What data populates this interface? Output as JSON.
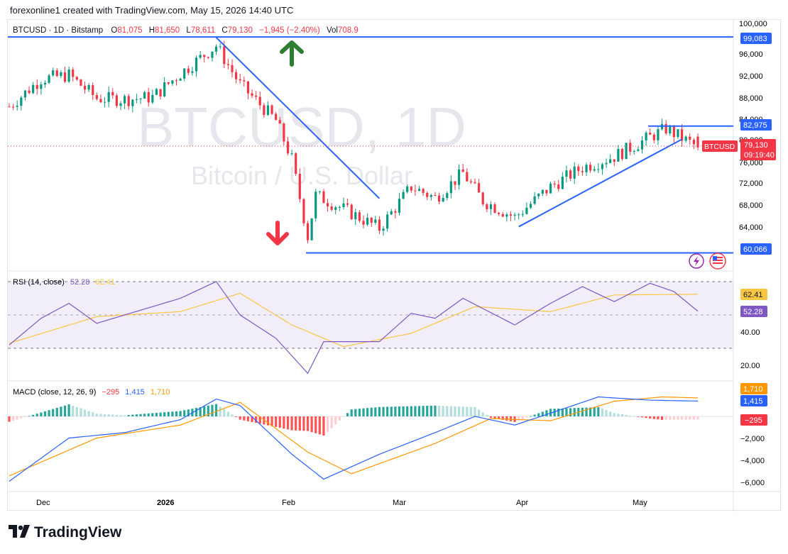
{
  "header": {
    "caption": "forexonline1 created with TradingView.com, May 15, 2026 14:40 UTC"
  },
  "legend": {
    "symbol": "BTCUSD · 1D · Bitstamp",
    "o_label": "O",
    "o": "81,075",
    "h_label": "H",
    "h": "81,650",
    "l_label": "L",
    "l": "78,611",
    "c_label": "C",
    "c": "79,130",
    "change": "−1,945 (−2.40%)",
    "vol_label": "Vol",
    "vol": "708.9"
  },
  "watermark": {
    "line1": "BTCUSD, 1D",
    "line2": "Bitcoin / U.S. Dollar"
  },
  "price_axis": {
    "ticks": [
      "100,000",
      "96,000",
      "92,000",
      "88,000",
      "84,000",
      "80,000",
      "76,000",
      "72,000",
      "68,000",
      "64,000"
    ]
  },
  "price_labels": {
    "resistance_top": "99,083",
    "range_top": "82,975",
    "symbol_tag": "BTCUSD",
    "last": "79,130",
    "countdown": "09:19:40",
    "support": "60,066"
  },
  "rsi": {
    "label": "RSI (14, close)",
    "value": "52.28",
    "ma": "62.41",
    "ticks": [
      "40.00",
      "20.00"
    ]
  },
  "macd": {
    "label": "MACD (close, 12, 26, 9)",
    "hist": "−295",
    "macd": "1,415",
    "signal": "1,710",
    "ticks": [
      "−2,000",
      "−4,000",
      "−6,000"
    ]
  },
  "time_axis": {
    "labels": [
      "Dec",
      "2026",
      "Feb",
      "Mar",
      "Apr",
      "May"
    ]
  },
  "colors": {
    "up": "#089981",
    "down": "#f23645",
    "line": "#2962ff",
    "rsi": "#7e57c2",
    "signal": "#ff9800"
  },
  "brand": {
    "name": "TradingView"
  },
  "chart_data": {
    "type": "candlestick",
    "symbol": "BTCUSD",
    "timeframe": "1D",
    "x_start": "2025-11-23",
    "x_end": "2026-05-15",
    "ylim": [
      60000,
      100000
    ],
    "last": {
      "open": 81075,
      "high": 81650,
      "low": 78611,
      "close": 79130
    },
    "price_path": [
      {
        "date": "2025-11-23",
        "close": 86500
      },
      {
        "date": "2025-12-01",
        "close": 91500
      },
      {
        "date": "2025-12-08",
        "close": 92200
      },
      {
        "date": "2025-12-15",
        "close": 88000
      },
      {
        "date": "2025-12-22",
        "close": 87800
      },
      {
        "date": "2025-12-29",
        "close": 88200
      },
      {
        "date": "2026-01-05",
        "close": 92500
      },
      {
        "date": "2026-01-14",
        "close": 97500
      },
      {
        "date": "2026-01-20",
        "close": 90500
      },
      {
        "date": "2026-01-29",
        "close": 84000
      },
      {
        "date": "2026-02-02",
        "close": 77000
      },
      {
        "date": "2026-02-06",
        "close": 63000
      },
      {
        "date": "2026-02-08",
        "close": 70500
      },
      {
        "date": "2026-02-15",
        "close": 68000
      },
      {
        "date": "2026-02-24",
        "close": 64500
      },
      {
        "date": "2026-03-04",
        "close": 72000
      },
      {
        "date": "2026-03-10",
        "close": 70000
      },
      {
        "date": "2026-03-17",
        "close": 74500
      },
      {
        "date": "2026-03-22",
        "close": 69500
      },
      {
        "date": "2026-03-30",
        "close": 66500
      },
      {
        "date": "2026-04-08",
        "close": 72000
      },
      {
        "date": "2026-04-16",
        "close": 75500
      },
      {
        "date": "2026-04-24",
        "close": 77500
      },
      {
        "date": "2026-05-03",
        "close": 81000
      },
      {
        "date": "2026-05-07",
        "close": 82500
      },
      {
        "date": "2026-05-15",
        "close": 79130
      }
    ],
    "horizontal_levels": [
      {
        "price": 99083,
        "label": "99,083"
      },
      {
        "price": 82975,
        "label": "82,975"
      },
      {
        "price": 60066,
        "label": "60,066"
      }
    ],
    "trend_lines": [
      {
        "from": {
          "date": "2026-01-14",
          "price": 99000
        },
        "to": {
          "date": "2026-02-24",
          "price": 69900
        }
      },
      {
        "from": {
          "date": "2026-03-31",
          "price": 64800
        },
        "to": {
          "date": "2026-05-11",
          "price": 80600
        }
      }
    ],
    "rsi": {
      "period": 14,
      "ylim": [
        10,
        75
      ],
      "bands": [
        30,
        70
      ],
      "path": [
        {
          "date": "2025-11-23",
          "value": 32
        },
        {
          "date": "2025-12-01",
          "value": 48
        },
        {
          "date": "2025-12-08",
          "value": 57
        },
        {
          "date": "2025-12-15",
          "value": 45
        },
        {
          "date": "2025-12-22",
          "value": 50
        },
        {
          "date": "2026-01-05",
          "value": 60
        },
        {
          "date": "2026-01-14",
          "value": 70
        },
        {
          "date": "2026-01-20",
          "value": 50
        },
        {
          "date": "2026-01-29",
          "value": 36
        },
        {
          "date": "2026-02-06",
          "value": 15
        },
        {
          "date": "2026-02-10",
          "value": 34
        },
        {
          "date": "2026-02-24",
          "value": 34
        },
        {
          "date": "2026-03-04",
          "value": 51
        },
        {
          "date": "2026-03-10",
          "value": 48
        },
        {
          "date": "2026-03-17",
          "value": 60
        },
        {
          "date": "2026-03-30",
          "value": 44
        },
        {
          "date": "2026-04-08",
          "value": 57
        },
        {
          "date": "2026-04-16",
          "value": 67
        },
        {
          "date": "2026-04-24",
          "value": 58
        },
        {
          "date": "2026-05-03",
          "value": 69
        },
        {
          "date": "2026-05-09",
          "value": 64
        },
        {
          "date": "2026-05-15",
          "value": 52.28
        }
      ],
      "ma_path": [
        {
          "date": "2025-11-23",
          "value": 33
        },
        {
          "date": "2025-12-15",
          "value": 49
        },
        {
          "date": "2026-01-05",
          "value": 52
        },
        {
          "date": "2026-01-20",
          "value": 63
        },
        {
          "date": "2026-02-02",
          "value": 44
        },
        {
          "date": "2026-02-15",
          "value": 31
        },
        {
          "date": "2026-03-04",
          "value": 39
        },
        {
          "date": "2026-03-20",
          "value": 55
        },
        {
          "date": "2026-04-08",
          "value": 52
        },
        {
          "date": "2026-04-24",
          "value": 62
        },
        {
          "date": "2026-05-15",
          "value": 62.41
        }
      ]
    },
    "macd": {
      "params": [
        12,
        26,
        9
      ],
      "ylim": [
        -7000,
        3000
      ],
      "macd_path": [
        {
          "date": "2025-11-23",
          "value": -6000
        },
        {
          "date": "2025-12-08",
          "value": -2000
        },
        {
          "date": "2025-12-22",
          "value": -1500
        },
        {
          "date": "2026-01-05",
          "value": -300
        },
        {
          "date": "2026-01-14",
          "value": 1600
        },
        {
          "date": "2026-01-20",
          "value": 1000
        },
        {
          "date": "2026-02-02",
          "value": -3500
        },
        {
          "date": "2026-02-10",
          "value": -5800
        },
        {
          "date": "2026-02-24",
          "value": -3500
        },
        {
          "date": "2026-03-10",
          "value": -1500
        },
        {
          "date": "2026-03-20",
          "value": 0
        },
        {
          "date": "2026-03-30",
          "value": -800
        },
        {
          "date": "2026-04-08",
          "value": 300
        },
        {
          "date": "2026-04-20",
          "value": 1800
        },
        {
          "date": "2026-05-03",
          "value": 1500
        },
        {
          "date": "2026-05-15",
          "value": 1415
        }
      ],
      "signal_path": [
        {
          "date": "2025-11-23",
          "value": -5500
        },
        {
          "date": "2025-12-15",
          "value": -2000
        },
        {
          "date": "2026-01-05",
          "value": -800
        },
        {
          "date": "2026-01-20",
          "value": 1300
        },
        {
          "date": "2026-02-06",
          "value": -3300
        },
        {
          "date": "2026-02-17",
          "value": -5300
        },
        {
          "date": "2026-03-10",
          "value": -2500
        },
        {
          "date": "2026-03-24",
          "value": -200
        },
        {
          "date": "2026-04-08",
          "value": -400
        },
        {
          "date": "2026-04-24",
          "value": 1400
        },
        {
          "date": "2026-05-06",
          "value": 1800
        },
        {
          "date": "2026-05-15",
          "value": 1710
        }
      ]
    }
  }
}
